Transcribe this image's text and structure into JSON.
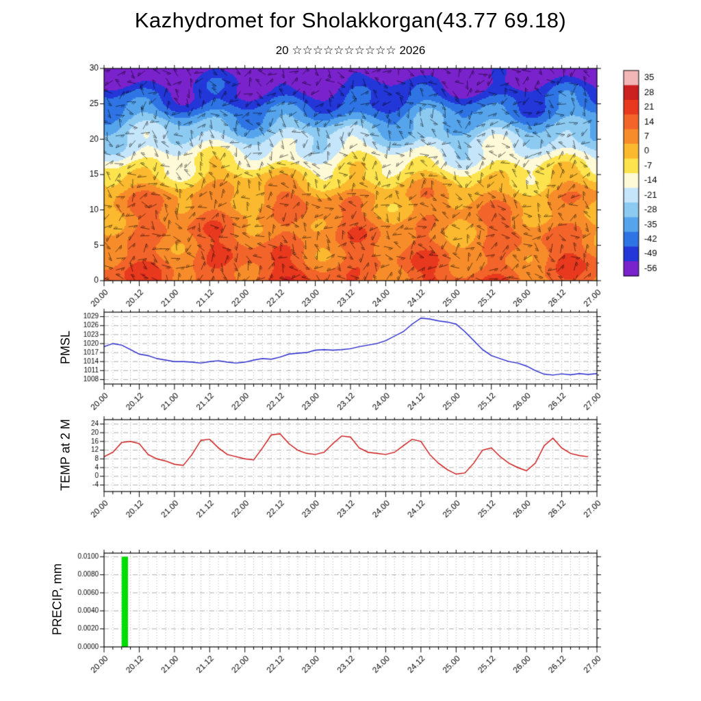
{
  "page": {
    "title": "Kazhydromet for Sholakkorgan(43.77 69.18)",
    "subtitle": "20 ☆☆☆☆☆☆☆☆☆☆ 2026"
  },
  "time_axis": {
    "start": 20,
    "end": 27,
    "minor_step_days": 0.125,
    "major_tick_values": [
      20,
      20.5,
      21,
      21.5,
      22,
      22.5,
      23,
      23.5,
      24,
      24.5,
      25,
      25.5,
      26,
      26.5,
      27
    ],
    "major_tick_labels": [
      "20.00",
      "20.12",
      "21.00",
      "21.12",
      "22.00",
      "22.12",
      "23.00",
      "23.12",
      "24.00",
      "24.12",
      "25.00",
      "25.12",
      "26.00",
      "26.12",
      "27.00"
    ]
  },
  "chart_data": [
    {
      "name": "temperature-height-cross-section",
      "type": "heatmap",
      "ylim": [
        0,
        30
      ],
      "yticks": [
        0,
        5,
        10,
        15,
        20,
        25,
        30
      ],
      "colorbar": {
        "labels": [
          "35",
          "28",
          "21",
          "14",
          "7",
          "0",
          "-7",
          "-14",
          "-21",
          "-28",
          "-35",
          "-42",
          "-49",
          "-56"
        ],
        "levels": [
          35,
          28,
          21,
          14,
          7,
          0,
          -7,
          -14,
          -21,
          -28,
          -35,
          -42,
          -49,
          -56
        ],
        "colors": [
          "#f2b6b6",
          "#cc1f1f",
          "#e8391f",
          "#f2642a",
          "#f78d2a",
          "#fbb92f",
          "#fde34e",
          "#fefad8",
          "#c5e6fa",
          "#8ccaf2",
          "#55a4ec",
          "#2f74e4",
          "#2336d8",
          "#7a22cc"
        ]
      },
      "field_model": {
        "surface_base": 18,
        "diurnal_amp": 5.5,
        "diurnal_phase": -2.1,
        "trend_amp": 1.2,
        "trend_freq": 0.9,
        "lapse_low": 0.75,
        "lapse_break_z": 12,
        "lapse_high": 3.65,
        "wiggles": [
          [
            3.0,
            0.55,
            2.8,
            0
          ],
          [
            2.2,
            1.25,
            -2.2,
            1.3
          ]
        ],
        "cold_pocket": {
          "amp": -7,
          "z": 25.5,
          "t": 22.3,
          "sz": 2.8,
          "st": 1.1
        }
      },
      "barbs": {
        "dx": 17,
        "dy": 15,
        "len": 13,
        "seed": 7
      }
    },
    {
      "name": "pmsl",
      "type": "line",
      "ylabel": "PMSL",
      "color": "#2222cc",
      "ylim": [
        1006.5,
        1030.5
      ],
      "yticks": [
        1008,
        1011,
        1014,
        1017,
        1020,
        1023,
        1026,
        1029
      ],
      "x_start": 20,
      "x_step_days": 0.125,
      "values": [
        1019,
        1020,
        1019.5,
        1018,
        1016.5,
        1016,
        1015,
        1014.5,
        1014,
        1014,
        1013.8,
        1013.5,
        1014,
        1014.3,
        1013.8,
        1013.5,
        1013.8,
        1014.5,
        1015,
        1014.8,
        1015.5,
        1016.5,
        1016.8,
        1017,
        1017.8,
        1018,
        1017.8,
        1018,
        1018.3,
        1019,
        1019.5,
        1020,
        1021,
        1022.5,
        1024,
        1026.5,
        1028.5,
        1028.2,
        1027.6,
        1027.2,
        1026.5,
        1024,
        1021,
        1018,
        1016,
        1015,
        1014,
        1013.5,
        1012.5,
        1011,
        1009.8,
        1009.5,
        1009.9,
        1009.6,
        1010,
        1009.7,
        1010
      ]
    },
    {
      "name": "temp-2m",
      "type": "line",
      "ylabel": "TEMP at 2 M",
      "color": "#cc1111",
      "ylim": [
        -7,
        26
      ],
      "yticks": [
        -4,
        0,
        4,
        8,
        12,
        16,
        20,
        24
      ],
      "x_start": 20,
      "x_step_days": 0.125,
      "values": [
        9,
        11,
        15.5,
        16,
        15,
        10,
        8,
        7,
        5.5,
        5,
        10,
        16.5,
        17,
        13,
        10,
        9,
        8,
        7.5,
        13,
        19,
        19.5,
        15,
        12,
        10.5,
        10,
        11,
        15,
        18.5,
        18,
        13,
        11,
        10.5,
        10,
        11,
        14,
        17,
        16,
        10,
        6,
        3,
        1,
        1.5,
        6,
        12,
        13,
        9,
        6,
        4,
        2.5,
        6,
        14,
        17.5,
        13,
        10.5,
        9.5,
        9
      ]
    },
    {
      "name": "precip",
      "type": "bar",
      "ylabel": "PRECIP, mm",
      "color": "#00dd00",
      "ylim": [
        0,
        0.0104
      ],
      "yticks": [
        0,
        0.002,
        0.004,
        0.006,
        0.008,
        0.01
      ],
      "ytick_labels": [
        "0.0000",
        "0.0020",
        "0.0040",
        "0.0060",
        "0.0080",
        "0.0100"
      ],
      "bars": [
        {
          "t_start": 20.25,
          "t_end": 20.34,
          "value": 0.01
        }
      ]
    }
  ]
}
